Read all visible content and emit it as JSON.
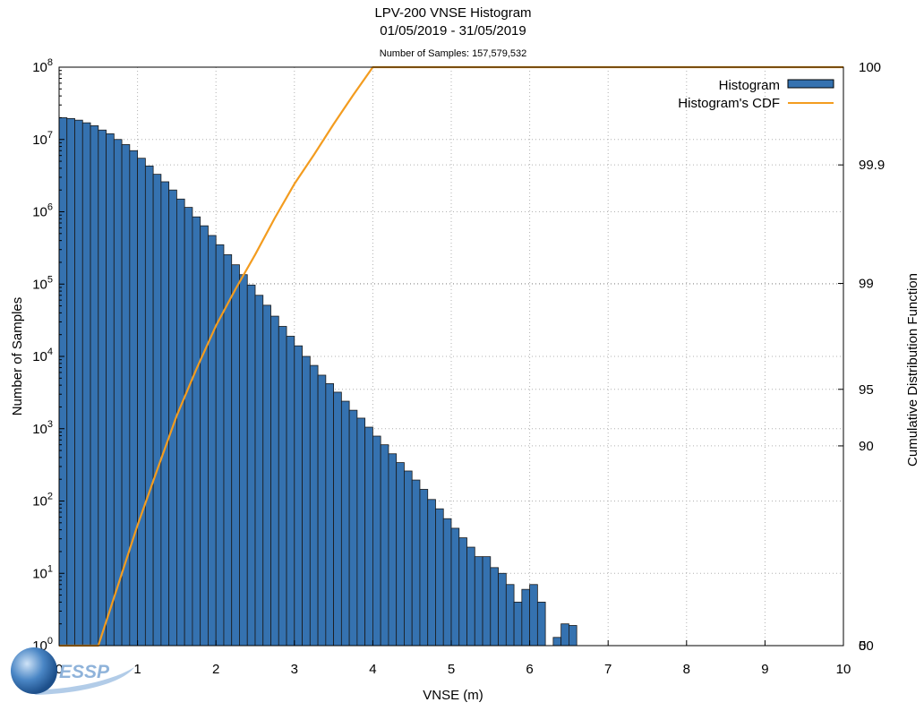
{
  "chart_data": {
    "type": "bar",
    "title": "LPV-200 VNSE Histogram",
    "subtitle": "01/05/2019 - 31/05/2019",
    "note": "Number of Samples: 157,579,532",
    "xlabel": "VNSE (m)",
    "ylabel": "Number of Samples",
    "y2label": "Cumulative Distribution Function",
    "xlim": [
      0,
      10
    ],
    "ylim": [
      1,
      100000000
    ],
    "yscale": "log",
    "grid": true,
    "legend_position": "top-right",
    "x_ticks": [
      "0",
      "1",
      "2",
      "3",
      "4",
      "5",
      "6",
      "7",
      "8",
      "9",
      "10"
    ],
    "y_ticks": [
      {
        "base": "10",
        "exp": "0",
        "value": 1
      },
      {
        "base": "10",
        "exp": "1",
        "value": 10
      },
      {
        "base": "10",
        "exp": "2",
        "value": 100
      },
      {
        "base": "10",
        "exp": "3",
        "value": 1000
      },
      {
        "base": "10",
        "exp": "4",
        "value": 10000
      },
      {
        "base": "10",
        "exp": "5",
        "value": 100000
      },
      {
        "base": "10",
        "exp": "6",
        "value": 1000000
      },
      {
        "base": "10",
        "exp": "7",
        "value": 10000000
      },
      {
        "base": "10",
        "exp": "8",
        "value": 100000000
      }
    ],
    "y2_ticks": [
      {
        "label": "0",
        "value": 0
      },
      {
        "label": "50",
        "value": 50
      },
      {
        "label": "90",
        "value": 90
      },
      {
        "label": "95",
        "value": 95
      },
      {
        "label": "99",
        "value": 99
      },
      {
        "label": "99.9",
        "value": 99.9
      },
      {
        "label": "100",
        "value": 100
      }
    ],
    "bin_width": 0.1,
    "series": [
      {
        "name": "Histogram",
        "type": "bar",
        "color": "#3572b0",
        "x": [
          0.05,
          0.15,
          0.25,
          0.35,
          0.45,
          0.55,
          0.65,
          0.75,
          0.85,
          0.95,
          1.05,
          1.15,
          1.25,
          1.35,
          1.45,
          1.55,
          1.65,
          1.75,
          1.85,
          1.95,
          2.05,
          2.15,
          2.25,
          2.35,
          2.45,
          2.55,
          2.65,
          2.75,
          2.85,
          2.95,
          3.05,
          3.15,
          3.25,
          3.35,
          3.45,
          3.55,
          3.65,
          3.75,
          3.85,
          3.95,
          4.05,
          4.15,
          4.25,
          4.35,
          4.45,
          4.55,
          4.65,
          4.75,
          4.85,
          4.95,
          5.05,
          5.15,
          5.25,
          5.35,
          5.45,
          5.55,
          5.65,
          5.75,
          5.85,
          5.95,
          6.05,
          6.15,
          6.25,
          6.35,
          6.45,
          6.55,
          6.65,
          7.65
        ],
        "values": [
          20000000,
          19500000,
          18500000,
          17000000,
          15500000,
          13500000,
          12000000,
          10000000,
          8500000,
          7000000,
          5500000,
          4300000,
          3300000,
          2600000,
          2000000,
          1500000,
          1150000,
          850000,
          640000,
          470000,
          350000,
          255000,
          185000,
          135000,
          97000,
          70000,
          51000,
          36000,
          26000,
          19000,
          14000,
          10000,
          7500,
          5500,
          4200,
          3200,
          2400,
          1800,
          1400,
          1050,
          790,
          600,
          450,
          340,
          260,
          195,
          145,
          105,
          78,
          57,
          42,
          31,
          23,
          17,
          17,
          12,
          10,
          7,
          4,
          6,
          7,
          4,
          1,
          1.3,
          2,
          1.9,
          0.6,
          1
        ]
      },
      {
        "name": "Histogram's CDF",
        "type": "line",
        "color": "#f39c1f",
        "x": [
          0,
          0.1,
          0.25,
          0.5,
          0.75,
          1,
          1.25,
          1.5,
          1.75,
          2,
          2.25,
          2.5,
          2.75,
          3,
          3.25,
          3.5,
          3.75,
          4,
          4.25,
          4.5,
          4.75,
          5,
          5.25,
          5.5,
          5.75,
          6,
          6.25,
          6.5,
          7,
          8,
          9,
          10
        ],
        "values": [
          0,
          10,
          25,
          48,
          65,
          78,
          87,
          93,
          96.2,
          98,
          98.9,
          99.4,
          99.7,
          99.85,
          99.92,
          99.96,
          99.98,
          99.99,
          99.995,
          99.998,
          99.9993,
          99.9998,
          99.99993,
          99.99998,
          99.999995,
          99.999998,
          100,
          100,
          100,
          100,
          100,
          100
        ]
      }
    ]
  },
  "logo": {
    "text": "ESSP"
  }
}
